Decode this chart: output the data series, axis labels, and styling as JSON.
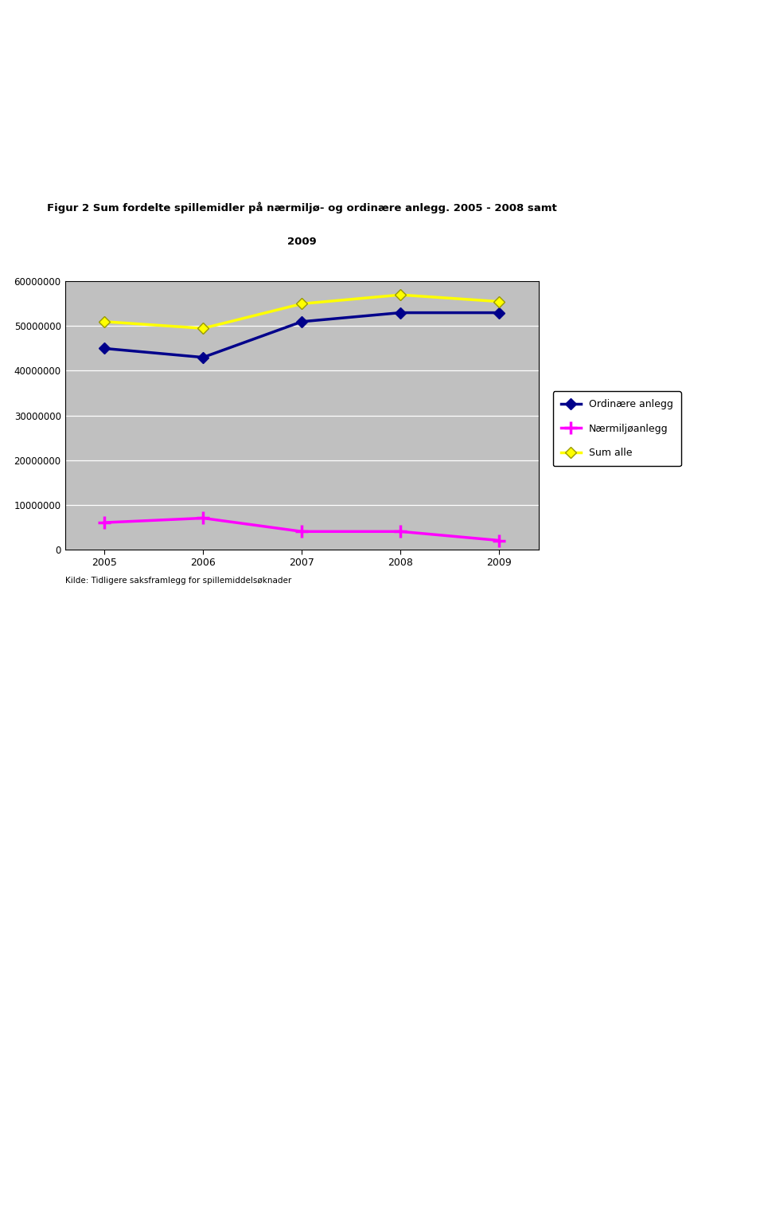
{
  "title_line1": "Figur 2 Sum fordelte spillemidler på nærmiljø- og ordinære anlegg. 2005 - 2008 samt",
  "title_line2": "2009",
  "years": [
    2005,
    2006,
    2007,
    2008,
    2009
  ],
  "ordinare": [
    45000000,
    43000000,
    51000000,
    53000000,
    53000000
  ],
  "naermiljo": [
    6000000,
    7000000,
    4000000,
    4000000,
    2000000
  ],
  "sum_alle": [
    51000000,
    49500000,
    55000000,
    57000000,
    55500000
  ],
  "ordinare_color": "#00008B",
  "naermiljo_color": "#FF00FF",
  "sum_alle_color": "#FFFF00",
  "legend_labels": [
    "Ordinære anlegg",
    "Nærmiljøanlegg",
    "Sum alle"
  ],
  "ylim": [
    0,
    60000000
  ],
  "yticks": [
    0,
    10000000,
    20000000,
    30000000,
    40000000,
    50000000,
    60000000
  ],
  "source_text": "Kilde: Tidligere saksframlegg for spillemiddelsøknader",
  "plot_bg_color": "#C0C0C0",
  "fig_bg_color": "#FFFFFF",
  "linewidth": 2.5,
  "markersize": 7
}
